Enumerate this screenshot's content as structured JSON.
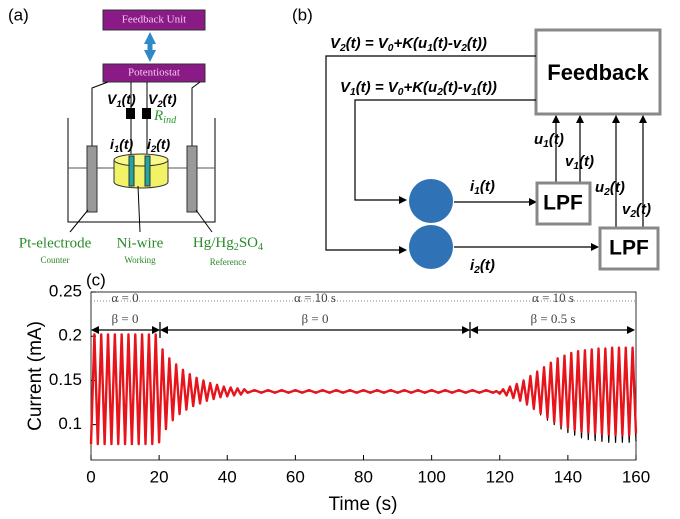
{
  "panel_a": {
    "label": "(a)",
    "feedback_unit": "Feedback Unit",
    "potentiostat": "Potentiostat",
    "v1": [
      "V",
      "1",
      "(t)"
    ],
    "v2": [
      "V",
      "2",
      "(t)"
    ],
    "r_ind": [
      "R",
      "ind"
    ],
    "i1": [
      "i",
      "1",
      "(t)"
    ],
    "i2": [
      "i",
      "2",
      "(t)"
    ],
    "counter": {
      "name": "Pt-electrode",
      "role": "Counter"
    },
    "working": {
      "name": "Ni-wire",
      "role": "Working"
    },
    "reference": {
      "name": [
        "Hg/Hg",
        "2",
        "SO",
        "4"
      ],
      "role": "Reference"
    }
  },
  "panel_b": {
    "label": "(b)",
    "eq2": [
      "V",
      "2",
      "(t) = V",
      "0",
      "+K(u",
      "1",
      "(t)-v",
      "2",
      "(t))"
    ],
    "eq1": [
      "V",
      "1",
      "(t) = V",
      "0",
      "+K(u",
      "2",
      "(t)-v",
      "1",
      "(t))"
    ],
    "feedback": "Feedback",
    "u1": [
      "u",
      "1",
      "(t)"
    ],
    "v1": [
      "v",
      "1",
      "(t)"
    ],
    "u2": [
      "u",
      "2",
      "(t)"
    ],
    "v2": [
      "v",
      "2",
      "(t)"
    ],
    "i1": [
      "i",
      "1",
      "(t)"
    ],
    "i2": [
      "i",
      "2",
      "(t)"
    ],
    "lpf1": "LPF",
    "lpf2": "LPF"
  },
  "chart_data": {
    "type": "line",
    "panel_label": "(c)",
    "x_label": "Time (s)",
    "y_label": "Current (mA)",
    "x": [
      0,
      1,
      2,
      3,
      4,
      5,
      6,
      7,
      8,
      9,
      10,
      11,
      12,
      13,
      14,
      15,
      16,
      17,
      18,
      19,
      20,
      21,
      22,
      23,
      24,
      25,
      26,
      27,
      28,
      29,
      30,
      31,
      32,
      33,
      34,
      35,
      36,
      37,
      38,
      39,
      40,
      41,
      42,
      43,
      44,
      45,
      46,
      48,
      50,
      52,
      54,
      56,
      58,
      60,
      62,
      64,
      66,
      68,
      70,
      72,
      74,
      76,
      78,
      80,
      82,
      84,
      86,
      88,
      90,
      92,
      94,
      96,
      98,
      100,
      102,
      104,
      106,
      108,
      110,
      112,
      114,
      116,
      118,
      119,
      120,
      121,
      122,
      123,
      124,
      125,
      126,
      127,
      128,
      129,
      130,
      131,
      132,
      133,
      134,
      135,
      136,
      137,
      138,
      139,
      140,
      141,
      142,
      143,
      144,
      145,
      146,
      147,
      148,
      149,
      150,
      151,
      152,
      153,
      154,
      155,
      156,
      157,
      158,
      159,
      160
    ],
    "series": [
      {
        "color": "#000000",
        "values": [
          0.082,
          0.197,
          0.082,
          0.197,
          0.082,
          0.197,
          0.082,
          0.197,
          0.082,
          0.197,
          0.082,
          0.197,
          0.082,
          0.197,
          0.082,
          0.197,
          0.082,
          0.197,
          0.082,
          0.197,
          0.083,
          0.182,
          0.097,
          0.173,
          0.107,
          0.166,
          0.114,
          0.16,
          0.119,
          0.155,
          0.122,
          0.151,
          0.125,
          0.148,
          0.128,
          0.146,
          0.13,
          0.144,
          0.132,
          0.142,
          0.133,
          0.141,
          0.134,
          0.14,
          0.135,
          0.139,
          0.137,
          0.138,
          0.137,
          0.138,
          0.137,
          0.138,
          0.137,
          0.138,
          0.137,
          0.138,
          0.137,
          0.138,
          0.137,
          0.138,
          0.137,
          0.138,
          0.137,
          0.138,
          0.137,
          0.138,
          0.137,
          0.138,
          0.137,
          0.138,
          0.137,
          0.138,
          0.137,
          0.138,
          0.137,
          0.138,
          0.137,
          0.138,
          0.137,
          0.138,
          0.137,
          0.138,
          0.137,
          0.137,
          0.137,
          0.138,
          0.134,
          0.14,
          0.131,
          0.143,
          0.127,
          0.147,
          0.122,
          0.151,
          0.117,
          0.155,
          0.111,
          0.159,
          0.105,
          0.163,
          0.1,
          0.166,
          0.095,
          0.169,
          0.091,
          0.171,
          0.088,
          0.172,
          0.085,
          0.173,
          0.083,
          0.174,
          0.082,
          0.175,
          0.081,
          0.175,
          0.08,
          0.176,
          0.08,
          0.176,
          0.08,
          0.176,
          0.08,
          0.176,
          0.081
        ]
      },
      {
        "color": "#e8141b",
        "values": [
          0.078,
          0.202,
          0.078,
          0.202,
          0.078,
          0.202,
          0.078,
          0.202,
          0.078,
          0.202,
          0.078,
          0.202,
          0.078,
          0.202,
          0.078,
          0.202,
          0.078,
          0.202,
          0.078,
          0.202,
          0.08,
          0.185,
          0.095,
          0.175,
          0.105,
          0.168,
          0.112,
          0.162,
          0.117,
          0.157,
          0.121,
          0.153,
          0.124,
          0.15,
          0.127,
          0.147,
          0.129,
          0.145,
          0.131,
          0.143,
          0.132,
          0.142,
          0.133,
          0.141,
          0.134,
          0.14,
          0.136,
          0.139,
          0.136,
          0.139,
          0.136,
          0.139,
          0.136,
          0.139,
          0.136,
          0.139,
          0.136,
          0.139,
          0.136,
          0.139,
          0.136,
          0.139,
          0.136,
          0.139,
          0.136,
          0.139,
          0.136,
          0.139,
          0.136,
          0.139,
          0.136,
          0.139,
          0.136,
          0.139,
          0.136,
          0.139,
          0.136,
          0.139,
          0.136,
          0.139,
          0.136,
          0.139,
          0.136,
          0.138,
          0.135,
          0.14,
          0.133,
          0.143,
          0.13,
          0.146,
          0.127,
          0.15,
          0.123,
          0.155,
          0.118,
          0.16,
          0.113,
          0.165,
          0.108,
          0.17,
          0.103,
          0.175,
          0.099,
          0.178,
          0.096,
          0.181,
          0.094,
          0.183,
          0.092,
          0.184,
          0.091,
          0.185,
          0.09,
          0.186,
          0.089,
          0.186,
          0.089,
          0.187,
          0.088,
          0.187,
          0.088,
          0.187,
          0.088,
          0.187,
          0.09
        ]
      }
    ],
    "xlim": [
      0,
      160
    ],
    "xticks": [
      0,
      20,
      40,
      60,
      80,
      100,
      120,
      140,
      160
    ],
    "ylim": [
      0.06,
      0.25
    ],
    "yticks": [
      0.1,
      0.15,
      0.2,
      0.25
    ],
    "regimes": [
      {
        "alpha": "α = 0",
        "beta": "β = 0"
      },
      {
        "alpha": "α = 10 s",
        "beta": "β = 0"
      },
      {
        "alpha": "α = 10 s",
        "beta": "β = 0.5 s"
      }
    ]
  }
}
